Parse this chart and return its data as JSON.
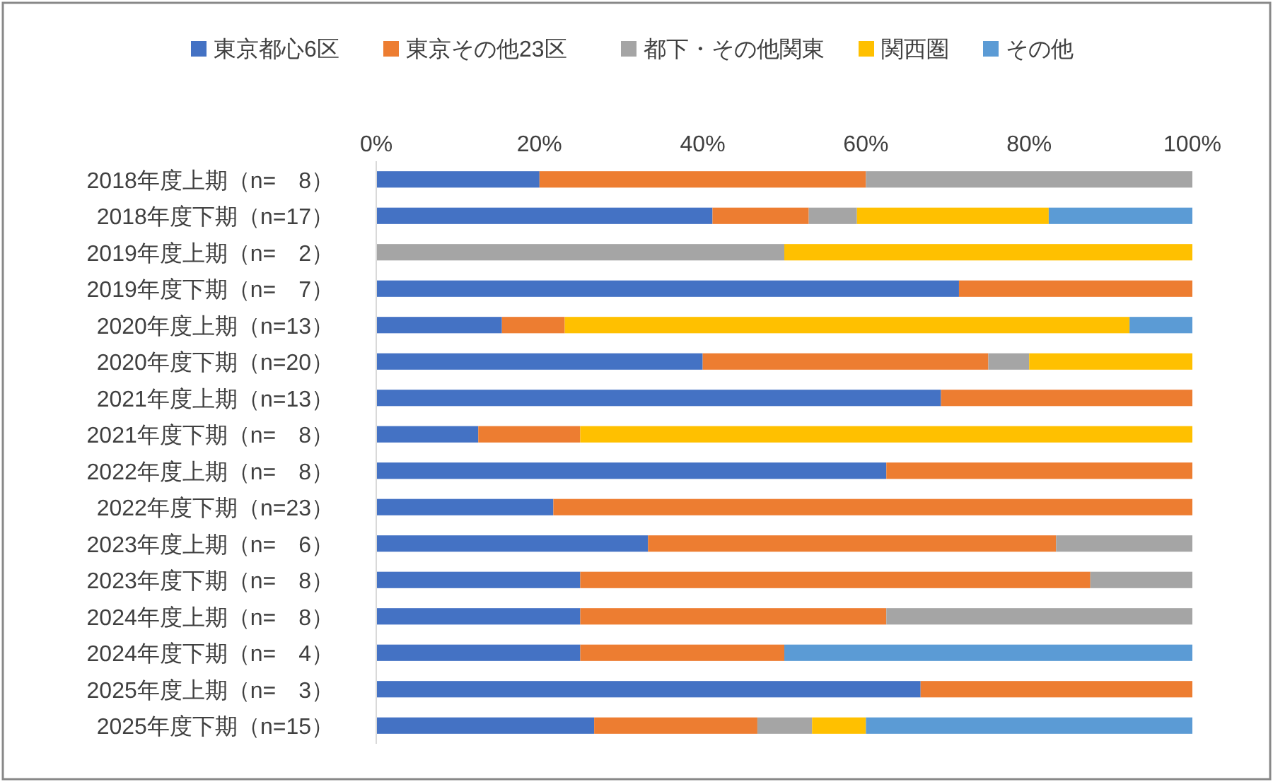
{
  "chart_data": {
    "type": "bar",
    "orientation": "horizontal",
    "stacked": true,
    "legend": "top",
    "categories": [
      "2018年度上期（n=　8）",
      "2018年度下期（n=17）",
      "2019年度上期（n=　2）",
      "2019年度下期（n=　7）",
      "2020年度上期（n=13）",
      "2020年度下期（n=20）",
      "2021年度上期（n=13）",
      "2021年度下期（n=　8）",
      "2022年度上期（n=　8）",
      "2022年度下期（n=23）",
      "2023年度上期（n=　6）",
      "2023年度下期（n=　8）",
      "2024年度上期（n=　8）",
      "2024年度下期（n=　4）",
      "2025年度上期（n=　3）",
      "2025年度下期（n=15）"
    ],
    "series": [
      {
        "name": "東京都心6区",
        "color": "#4472c4",
        "values": [
          20,
          41.2,
          0,
          71.4,
          15.4,
          40,
          69.2,
          12.5,
          62.5,
          21.7,
          33.3,
          25,
          25,
          25,
          66.7,
          26.7
        ]
      },
      {
        "name": "東京その他23区",
        "color": "#ed7d31",
        "values": [
          40,
          11.8,
          0,
          28.6,
          7.7,
          35,
          30.8,
          12.5,
          37.5,
          78.3,
          50,
          62.5,
          37.5,
          25,
          33.3,
          20
        ]
      },
      {
        "name": "都下・その他関東",
        "color": "#a5a5a5",
        "values": [
          40,
          5.9,
          50,
          0,
          0,
          5,
          0,
          0,
          0,
          0,
          16.7,
          12.5,
          37.5,
          0,
          0,
          6.7
        ]
      },
      {
        "name": "関西圏",
        "color": "#ffc000",
        "values": [
          0,
          23.5,
          50,
          0,
          69.2,
          20,
          0,
          75,
          0,
          0,
          0,
          0,
          0,
          0,
          0,
          6.6
        ]
      },
      {
        "name": "その他",
        "color": "#5b9bd5",
        "values": [
          0,
          17.6,
          0,
          0,
          7.7,
          0,
          0,
          0,
          0,
          0,
          0,
          0,
          0,
          50,
          0,
          40
        ]
      }
    ],
    "xlim": [
      0,
      100
    ],
    "xticks": [
      {
        "value": 0,
        "label": "0%"
      },
      {
        "value": 20,
        "label": "20%"
      },
      {
        "value": 40,
        "label": "40%"
      },
      {
        "value": 60,
        "label": "60%"
      },
      {
        "value": 80,
        "label": "80%"
      },
      {
        "value": 100,
        "label": "100%"
      }
    ]
  }
}
